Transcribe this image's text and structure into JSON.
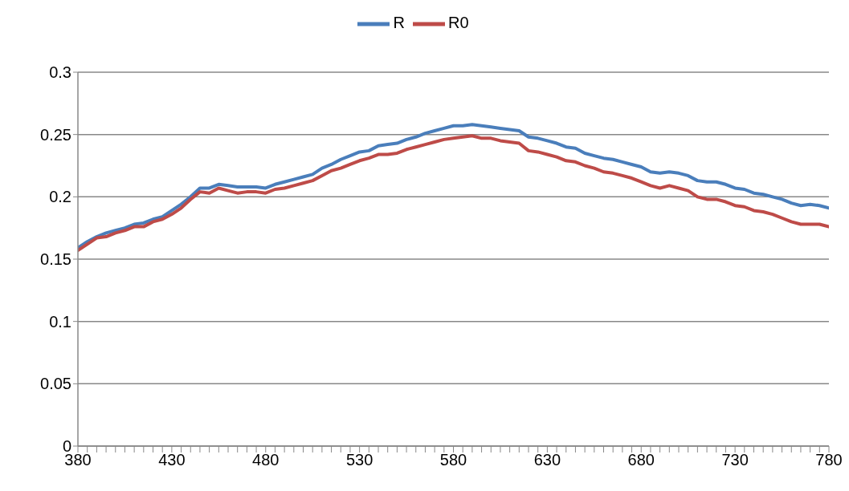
{
  "chart_data": {
    "type": "line",
    "x": [
      380,
      385,
      390,
      395,
      400,
      405,
      410,
      415,
      420,
      425,
      430,
      435,
      440,
      445,
      450,
      455,
      460,
      465,
      470,
      475,
      480,
      485,
      490,
      495,
      500,
      505,
      510,
      515,
      520,
      525,
      530,
      535,
      540,
      545,
      550,
      555,
      560,
      565,
      570,
      575,
      580,
      585,
      590,
      595,
      600,
      605,
      610,
      615,
      620,
      625,
      630,
      635,
      640,
      645,
      650,
      655,
      660,
      665,
      670,
      675,
      680,
      685,
      690,
      695,
      700,
      705,
      710,
      715,
      720,
      725,
      730,
      735,
      740,
      745,
      750,
      755,
      760,
      765,
      770,
      775,
      780
    ],
    "series": [
      {
        "name": "R",
        "color": "#4a7ebb",
        "values": [
          0.159,
          0.164,
          0.168,
          0.171,
          0.173,
          0.175,
          0.178,
          0.179,
          0.182,
          0.184,
          0.189,
          0.194,
          0.2,
          0.207,
          0.207,
          0.21,
          0.209,
          0.208,
          0.208,
          0.208,
          0.207,
          0.21,
          0.212,
          0.214,
          0.216,
          0.218,
          0.223,
          0.226,
          0.23,
          0.233,
          0.236,
          0.237,
          0.241,
          0.242,
          0.243,
          0.246,
          0.248,
          0.251,
          0.253,
          0.255,
          0.257,
          0.257,
          0.258,
          0.257,
          0.256,
          0.255,
          0.254,
          0.253,
          0.248,
          0.247,
          0.245,
          0.243,
          0.24,
          0.239,
          0.235,
          0.233,
          0.231,
          0.23,
          0.228,
          0.226,
          0.224,
          0.22,
          0.219,
          0.22,
          0.219,
          0.217,
          0.213,
          0.212,
          0.212,
          0.21,
          0.207,
          0.206,
          0.203,
          0.202,
          0.2,
          0.198,
          0.195,
          0.193,
          0.194,
          0.193,
          0.191
        ]
      },
      {
        "name": "R0",
        "color": "#be4b48",
        "values": [
          0.157,
          0.162,
          0.167,
          0.168,
          0.171,
          0.173,
          0.176,
          0.176,
          0.18,
          0.182,
          0.186,
          0.191,
          0.198,
          0.204,
          0.203,
          0.207,
          0.205,
          0.203,
          0.204,
          0.204,
          0.203,
          0.206,
          0.207,
          0.209,
          0.211,
          0.213,
          0.217,
          0.221,
          0.223,
          0.226,
          0.229,
          0.231,
          0.234,
          0.234,
          0.235,
          0.238,
          0.24,
          0.242,
          0.244,
          0.246,
          0.247,
          0.248,
          0.249,
          0.247,
          0.247,
          0.245,
          0.244,
          0.243,
          0.237,
          0.236,
          0.234,
          0.232,
          0.229,
          0.228,
          0.225,
          0.223,
          0.22,
          0.219,
          0.217,
          0.215,
          0.212,
          0.209,
          0.207,
          0.209,
          0.207,
          0.205,
          0.2,
          0.198,
          0.198,
          0.196,
          0.193,
          0.192,
          0.189,
          0.188,
          0.186,
          0.183,
          0.18,
          0.178,
          0.178,
          0.178,
          0.176
        ]
      }
    ],
    "xlim": [
      380,
      780
    ],
    "xticks": [
      380,
      {
        "value": 385,
        "label": null
      },
      {
        "value": 390,
        "label": null
      },
      {
        "value": 395,
        "label": null
      },
      {
        "value": 400,
        "label": null
      },
      {
        "value": 405,
        "label": null
      },
      {
        "value": 410,
        "label": null
      },
      {
        "value": 415,
        "label": null
      },
      {
        "value": 420,
        "label": null
      },
      {
        "value": 425,
        "label": null
      },
      430,
      {
        "value": 435,
        "label": null
      },
      {
        "value": 440,
        "label": null
      },
      {
        "value": 445,
        "label": null
      },
      {
        "value": 450,
        "label": null
      },
      {
        "value": 455,
        "label": null
      },
      {
        "value": 460,
        "label": null
      },
      {
        "value": 465,
        "label": null
      },
      {
        "value": 470,
        "label": null
      },
      {
        "value": 475,
        "label": null
      },
      480,
      {
        "value": 485,
        "label": null
      },
      {
        "value": 490,
        "label": null
      },
      {
        "value": 495,
        "label": null
      },
      {
        "value": 500,
        "label": null
      },
      {
        "value": 505,
        "label": null
      },
      {
        "value": 510,
        "label": null
      },
      {
        "value": 515,
        "label": null
      },
      {
        "value": 520,
        "label": null
      },
      {
        "value": 525,
        "label": null
      },
      530,
      {
        "value": 535,
        "label": null
      },
      {
        "value": 540,
        "label": null
      },
      {
        "value": 545,
        "label": null
      },
      {
        "value": 550,
        "label": null
      },
      {
        "value": 555,
        "label": null
      },
      {
        "value": 560,
        "label": null
      },
      {
        "value": 565,
        "label": null
      },
      {
        "value": 570,
        "label": null
      },
      {
        "value": 575,
        "label": null
      },
      580,
      {
        "value": 585,
        "label": null
      },
      {
        "value": 590,
        "label": null
      },
      {
        "value": 595,
        "label": null
      },
      {
        "value": 600,
        "label": null
      },
      {
        "value": 605,
        "label": null
      },
      {
        "value": 610,
        "label": null
      },
      {
        "value": 615,
        "label": null
      },
      {
        "value": 620,
        "label": null
      },
      {
        "value": 625,
        "label": null
      },
      630,
      {
        "value": 635,
        "label": null
      },
      {
        "value": 640,
        "label": null
      },
      {
        "value": 645,
        "label": null
      },
      {
        "value": 650,
        "label": null
      },
      {
        "value": 655,
        "label": null
      },
      {
        "value": 660,
        "label": null
      },
      {
        "value": 665,
        "label": null
      },
      {
        "value": 670,
        "label": null
      },
      {
        "value": 675,
        "label": null
      },
      680,
      {
        "value": 685,
        "label": null
      },
      {
        "value": 690,
        "label": null
      },
      {
        "value": 695,
        "label": null
      },
      {
        "value": 700,
        "label": null
      },
      {
        "value": 705,
        "label": null
      },
      {
        "value": 710,
        "label": null
      },
      {
        "value": 715,
        "label": null
      },
      {
        "value": 720,
        "label": null
      },
      {
        "value": 725,
        "label": null
      },
      730,
      {
        "value": 735,
        "label": null
      },
      {
        "value": 740,
        "label": null
      },
      {
        "value": 745,
        "label": null
      },
      {
        "value": 750,
        "label": null
      },
      {
        "value": 755,
        "label": null
      },
      {
        "value": 760,
        "label": null
      },
      {
        "value": 765,
        "label": null
      },
      {
        "value": 770,
        "label": null
      },
      {
        "value": 775,
        "label": null
      },
      780
    ],
    "ylim": [
      0,
      0.3
    ],
    "yticks": [
      0,
      0.05,
      0.1,
      0.15,
      0.2,
      0.25,
      0.3
    ],
    "grid": "y",
    "legend": "top",
    "marker": "none",
    "line_style": "solid"
  }
}
